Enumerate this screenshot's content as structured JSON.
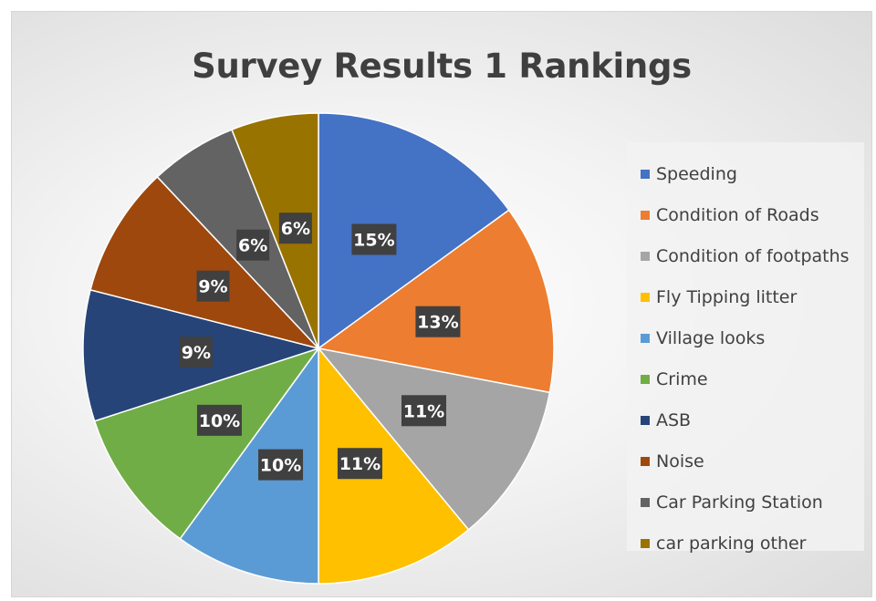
{
  "chart_data": {
    "type": "pie",
    "title": "Survey Results 1 Rankings",
    "categories": [
      "Speeding",
      "Condition of Roads",
      "Condition of footpaths",
      "Fly Tipping litter",
      "Village looks",
      "Crime",
      "ASB",
      "Noise",
      "Car Parking Station",
      "car parking other"
    ],
    "values": [
      15,
      13,
      11,
      11,
      10,
      10,
      9,
      9,
      6,
      6
    ],
    "labels": [
      "15%",
      "13%",
      "11%",
      "11%",
      "10%",
      "10%",
      "9%",
      "9%",
      "6%",
      "6%"
    ],
    "colors": [
      "#4472c4",
      "#ed7d31",
      "#a5a5a5",
      "#ffc000",
      "#5b9bd5",
      "#70ad47",
      "#264478",
      "#9e480e",
      "#636363",
      "#997300"
    ],
    "legend_position": "right"
  }
}
